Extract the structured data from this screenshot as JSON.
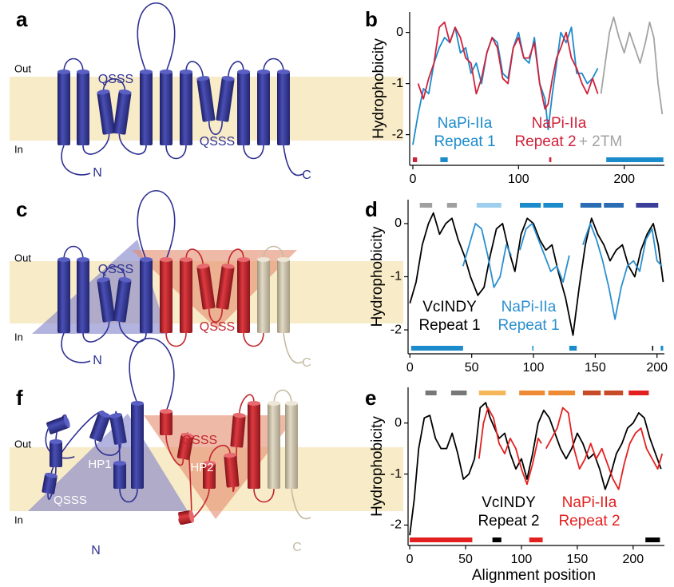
{
  "diagrams": [
    {
      "label": "a",
      "out": "Out",
      "in": "In",
      "texts": [
        "QSSS",
        "QSSS",
        "N",
        "C"
      ]
    },
    {
      "label": "c",
      "out": "Out",
      "in": "In",
      "texts": [
        "QSSS",
        "QSSS",
        "N",
        "C"
      ]
    },
    {
      "label": "f",
      "out": "Out",
      "in": "In",
      "texts": [
        "HP1",
        "QSSS",
        "QSSS",
        "HP2",
        "N",
        "C"
      ]
    }
  ],
  "chart_data": [
    {
      "type": "line",
      "label": "b",
      "ylabel": "Hydrophobicity",
      "xlim": [
        -3,
        238
      ],
      "ylim": [
        -2.6,
        0.4
      ],
      "xticks": [
        0,
        100,
        200
      ],
      "yticks": [
        -2,
        -1,
        0
      ],
      "series": [
        {
          "color": "#1b8bcb",
          "x": [
            0,
            5,
            10,
            15,
            20,
            25,
            30,
            35,
            40,
            45,
            50,
            55,
            60,
            65,
            70,
            75,
            80,
            85,
            90,
            95,
            100,
            105,
            110,
            115,
            120,
            125,
            128,
            132,
            136,
            140,
            145,
            150,
            155,
            160,
            165,
            170,
            175
          ],
          "values": [
            -2.2,
            -1.6,
            -1.1,
            -1.2,
            -0.6,
            -0.3,
            -0.1,
            -0.2,
            0.1,
            -0.4,
            -0.3,
            -0.8,
            -0.6,
            -1.0,
            -0.4,
            -0.1,
            -0.2,
            -0.8,
            -0.9,
            -0.3,
            0.0,
            -0.5,
            -0.6,
            -0.1,
            -1.0,
            -1.3,
            -1.9,
            -1.2,
            -0.6,
            0.0,
            -0.2,
            0.1,
            -0.8,
            -0.8,
            -1.0,
            -0.9,
            -0.7
          ]
        },
        {
          "color": "#d0213b",
          "x": [
            5,
            10,
            15,
            20,
            25,
            30,
            35,
            40,
            45,
            50,
            55,
            60,
            65,
            70,
            75,
            80,
            85,
            90,
            95,
            100,
            105,
            110,
            115,
            120,
            125,
            128,
            132,
            136,
            140,
            145,
            150,
            155,
            160,
            165,
            170,
            175
          ],
          "values": [
            -1.0,
            -1.3,
            -0.9,
            -0.6,
            0.1,
            0.2,
            -0.2,
            0.1,
            -0.1,
            -0.5,
            -0.6,
            -1.2,
            -0.9,
            -0.4,
            -0.1,
            -0.3,
            -0.9,
            -1.0,
            -0.3,
            -0.1,
            -0.5,
            -0.5,
            -0.2,
            -1.0,
            -1.5,
            -1.4,
            -0.9,
            -0.5,
            -0.3,
            0.0,
            -0.5,
            -0.7,
            -1.0,
            -1.2,
            -0.9,
            -1.2
          ]
        },
        {
          "color": "#a3a3a3",
          "x": [
            178,
            182,
            186,
            190,
            195,
            200,
            205,
            210,
            215,
            220,
            224,
            228,
            232,
            236
          ],
          "values": [
            -1.2,
            -0.6,
            0.0,
            0.3,
            -0.1,
            -0.4,
            0.0,
            -0.3,
            -0.6,
            -0.2,
            0.2,
            -0.1,
            -1.0,
            -1.6
          ]
        }
      ],
      "annotations": [
        {
          "text": "NaPi-IIa",
          "color": "#1b8bcb"
        },
        {
          "text": "Repeat 1",
          "color": "#1b8bcb"
        },
        {
          "text": "NaPi-IIa",
          "color": "#d0213b"
        },
        {
          "text": "Repeat 2",
          "color": "#d0213b"
        },
        {
          "text": "+ 2TM",
          "color": "#a3a3a3"
        }
      ],
      "top_segments": [],
      "bottom_segments": [
        {
          "start": 0,
          "end": 4,
          "color": "#d0213b"
        },
        {
          "start": 26,
          "end": 33,
          "color": "#1b8bcb"
        },
        {
          "start": 129,
          "end": 131,
          "color": "#d0213b"
        },
        {
          "start": 183,
          "end": 237,
          "color": "#1b8bcb"
        }
      ]
    },
    {
      "type": "line",
      "label": "d",
      "ylabel": "Hydrophobicity",
      "xlim": [
        -1.5,
        206
      ],
      "ylim": [
        -2.45,
        0.45
      ],
      "xticks": [
        0,
        50,
        100,
        150,
        200
      ],
      "yticks": [
        -2,
        -1,
        0
      ],
      "series": [
        {
          "color": "#000000",
          "x": [
            0,
            5,
            10,
            15,
            19,
            24,
            29,
            34,
            39,
            44,
            49,
            55,
            60,
            65,
            70,
            75,
            80,
            85,
            90,
            95,
            100,
            105,
            110,
            115,
            120,
            126,
            132,
            137,
            142,
            147,
            152,
            157,
            162,
            167,
            172,
            177,
            182,
            187,
            192,
            197,
            201,
            205
          ],
          "values": [
            -1.5,
            -1.1,
            -0.4,
            0.0,
            0.2,
            -0.2,
            0.0,
            0.1,
            -0.3,
            -0.6,
            -1.0,
            -1.35,
            -1.2,
            -0.6,
            -0.1,
            0.0,
            -0.5,
            -0.9,
            -0.2,
            0.1,
            0.0,
            -0.3,
            -0.5,
            -0.4,
            -0.9,
            -1.4,
            -2.1,
            -1.2,
            -0.4,
            0.1,
            -0.2,
            -0.4,
            -0.7,
            -0.5,
            -0.4,
            -0.8,
            -1.0,
            -0.5,
            -0.2,
            0.0,
            -0.4,
            -1.1
          ]
        },
        {
          "color": "#2b8fcf",
          "x": [
            43,
            48,
            53,
            58,
            63,
            68,
            73,
            78,
            82,
            86,
            89,
            94,
            99,
            104,
            109,
            114,
            119,
            124,
            129,
            135,
            140,
            146,
            151,
            156,
            161,
            166,
            171,
            176,
            181,
            186,
            191,
            196,
            200,
            204
          ],
          "values": [
            -0.8,
            -0.4,
            0.0,
            -0.1,
            -0.6,
            -1.2,
            -1.0,
            -0.4,
            -0.6,
            null,
            -0.5,
            -0.1,
            0.0,
            -0.3,
            -0.6,
            -0.9,
            -0.8,
            -1.1,
            -0.6,
            null,
            -0.4,
            0.0,
            -0.3,
            -0.7,
            -1.2,
            -1.8,
            -1.2,
            -0.8,
            -0.7,
            -0.9,
            -0.3,
            -0.1,
            -0.7,
            -0.8
          ]
        }
      ],
      "annotations": [
        {
          "text": "VcINDY",
          "color": "#000000"
        },
        {
          "text": "Repeat 1",
          "color": "#000000"
        },
        {
          "text": "NaPi-IIa",
          "color": "#2b8fcf"
        },
        {
          "text": "Repeat 1",
          "color": "#2b8fcf"
        }
      ],
      "top_segments": [
        {
          "start": 8,
          "end": 18,
          "color": "#a0a0a0"
        },
        {
          "start": 30,
          "end": 38,
          "color": "#a0a0a0"
        },
        {
          "start": 54,
          "end": 74,
          "color": "#9fcfee"
        },
        {
          "start": 89,
          "end": 106,
          "color": "#1b8bcb"
        },
        {
          "start": 108,
          "end": 124,
          "color": "#1b8bcb"
        },
        {
          "start": 138,
          "end": 155,
          "color": "#2a6db5"
        },
        {
          "start": 157,
          "end": 173,
          "color": "#2a6db5"
        },
        {
          "start": 183,
          "end": 201,
          "color": "#3b3f99"
        }
      ],
      "bottom_segments": [
        {
          "start": 1,
          "end": 43,
          "color": "#1b8bcb"
        },
        {
          "start": 99,
          "end": 100,
          "color": "#1b8bcb"
        },
        {
          "start": 129,
          "end": 135,
          "color": "#1b8bcb"
        },
        {
          "start": 196,
          "end": 197,
          "color": "#000000"
        },
        {
          "start": 203,
          "end": 205,
          "color": "#1b8bcb"
        }
      ]
    },
    {
      "type": "line",
      "label": "e",
      "ylabel": "Hydrophobicity",
      "xlabel": "Alignment position",
      "xlim": [
        -1.5,
        228
      ],
      "ylim": [
        -2.4,
        0.7
      ],
      "xticks": [
        0,
        50,
        100,
        150,
        200
      ],
      "yticks": [
        -2,
        -1,
        0
      ],
      "series": [
        {
          "color": "#000000",
          "x": [
            0,
            4,
            8,
            13,
            18,
            23,
            28,
            33,
            38,
            43,
            48,
            53,
            58,
            63,
            68,
            72,
            76,
            80,
            85,
            90,
            95,
            100,
            105,
            110,
            115,
            120,
            125,
            130,
            135,
            140,
            145,
            150,
            155,
            160,
            165,
            170,
            175,
            180,
            185,
            190,
            195,
            200,
            205,
            210,
            215,
            220,
            225
          ],
          "values": [
            -2.2,
            -1.5,
            -0.5,
            0.1,
            0.15,
            -0.3,
            -0.5,
            -0.5,
            -0.2,
            -0.6,
            -1.1,
            -1.0,
            -0.7,
            0.3,
            0.4,
            0.1,
            -0.1,
            -0.3,
            -0.2,
            -0.6,
            -0.9,
            -0.7,
            -1.1,
            -0.6,
            0.0,
            0.25,
            0.1,
            -0.2,
            -0.5,
            -0.7,
            -0.5,
            -0.2,
            -0.4,
            -0.7,
            -0.6,
            -0.9,
            -1.3,
            -1.0,
            -0.6,
            -0.4,
            -0.1,
            0.0,
            0.2,
            0.1,
            -0.3,
            -0.6,
            -0.9
          ]
        },
        {
          "color": "#e3201f",
          "x": [
            62,
            66,
            70,
            75,
            80,
            85,
            90,
            95,
            100,
            105,
            110,
            115,
            118,
            120,
            122,
            127,
            132,
            137,
            142,
            147,
            152,
            157,
            162,
            167,
            172,
            177,
            182,
            187,
            192,
            197,
            202,
            207,
            212,
            217,
            222,
            226
          ],
          "values": [
            -0.7,
            0.0,
            0.3,
            0.1,
            -0.4,
            -0.6,
            -0.3,
            -0.5,
            -0.9,
            -1.2,
            -0.8,
            -0.3,
            -0.4,
            null,
            -0.5,
            -0.3,
            -0.1,
            0.3,
            0.2,
            -0.5,
            -0.9,
            -0.7,
            -0.4,
            -0.7,
            -0.5,
            -0.8,
            -1.1,
            -1.3,
            -0.8,
            -0.4,
            -0.2,
            -0.1,
            -0.5,
            -0.7,
            -0.9,
            -0.6
          ]
        }
      ],
      "annotations": [
        {
          "text": "VcINDY",
          "color": "#000000"
        },
        {
          "text": "Repeat 2",
          "color": "#000000"
        },
        {
          "text": "NaPi-IIa",
          "color": "#e3201f"
        },
        {
          "text": "Repeat 2",
          "color": "#e3201f"
        }
      ],
      "top_segments": [
        {
          "start": 14,
          "end": 24,
          "color": "#777777"
        },
        {
          "start": 37,
          "end": 51,
          "color": "#777777"
        },
        {
          "start": 62,
          "end": 86,
          "color": "#f5b75a"
        },
        {
          "start": 98,
          "end": 121,
          "color": "#ee8a33"
        },
        {
          "start": 124,
          "end": 148,
          "color": "#ee8a33"
        },
        {
          "start": 155,
          "end": 171,
          "color": "#c84b27"
        },
        {
          "start": 174,
          "end": 191,
          "color": "#c84b27"
        },
        {
          "start": 196,
          "end": 214,
          "color": "#e3201f"
        }
      ],
      "bottom_segments": [
        {
          "start": 0,
          "end": 56,
          "color": "#e3201f"
        },
        {
          "start": 74,
          "end": 82,
          "color": "#000000"
        },
        {
          "start": 107,
          "end": 119,
          "color": "#e3201f"
        },
        {
          "start": 211,
          "end": 224,
          "color": "#000000"
        }
      ]
    }
  ]
}
